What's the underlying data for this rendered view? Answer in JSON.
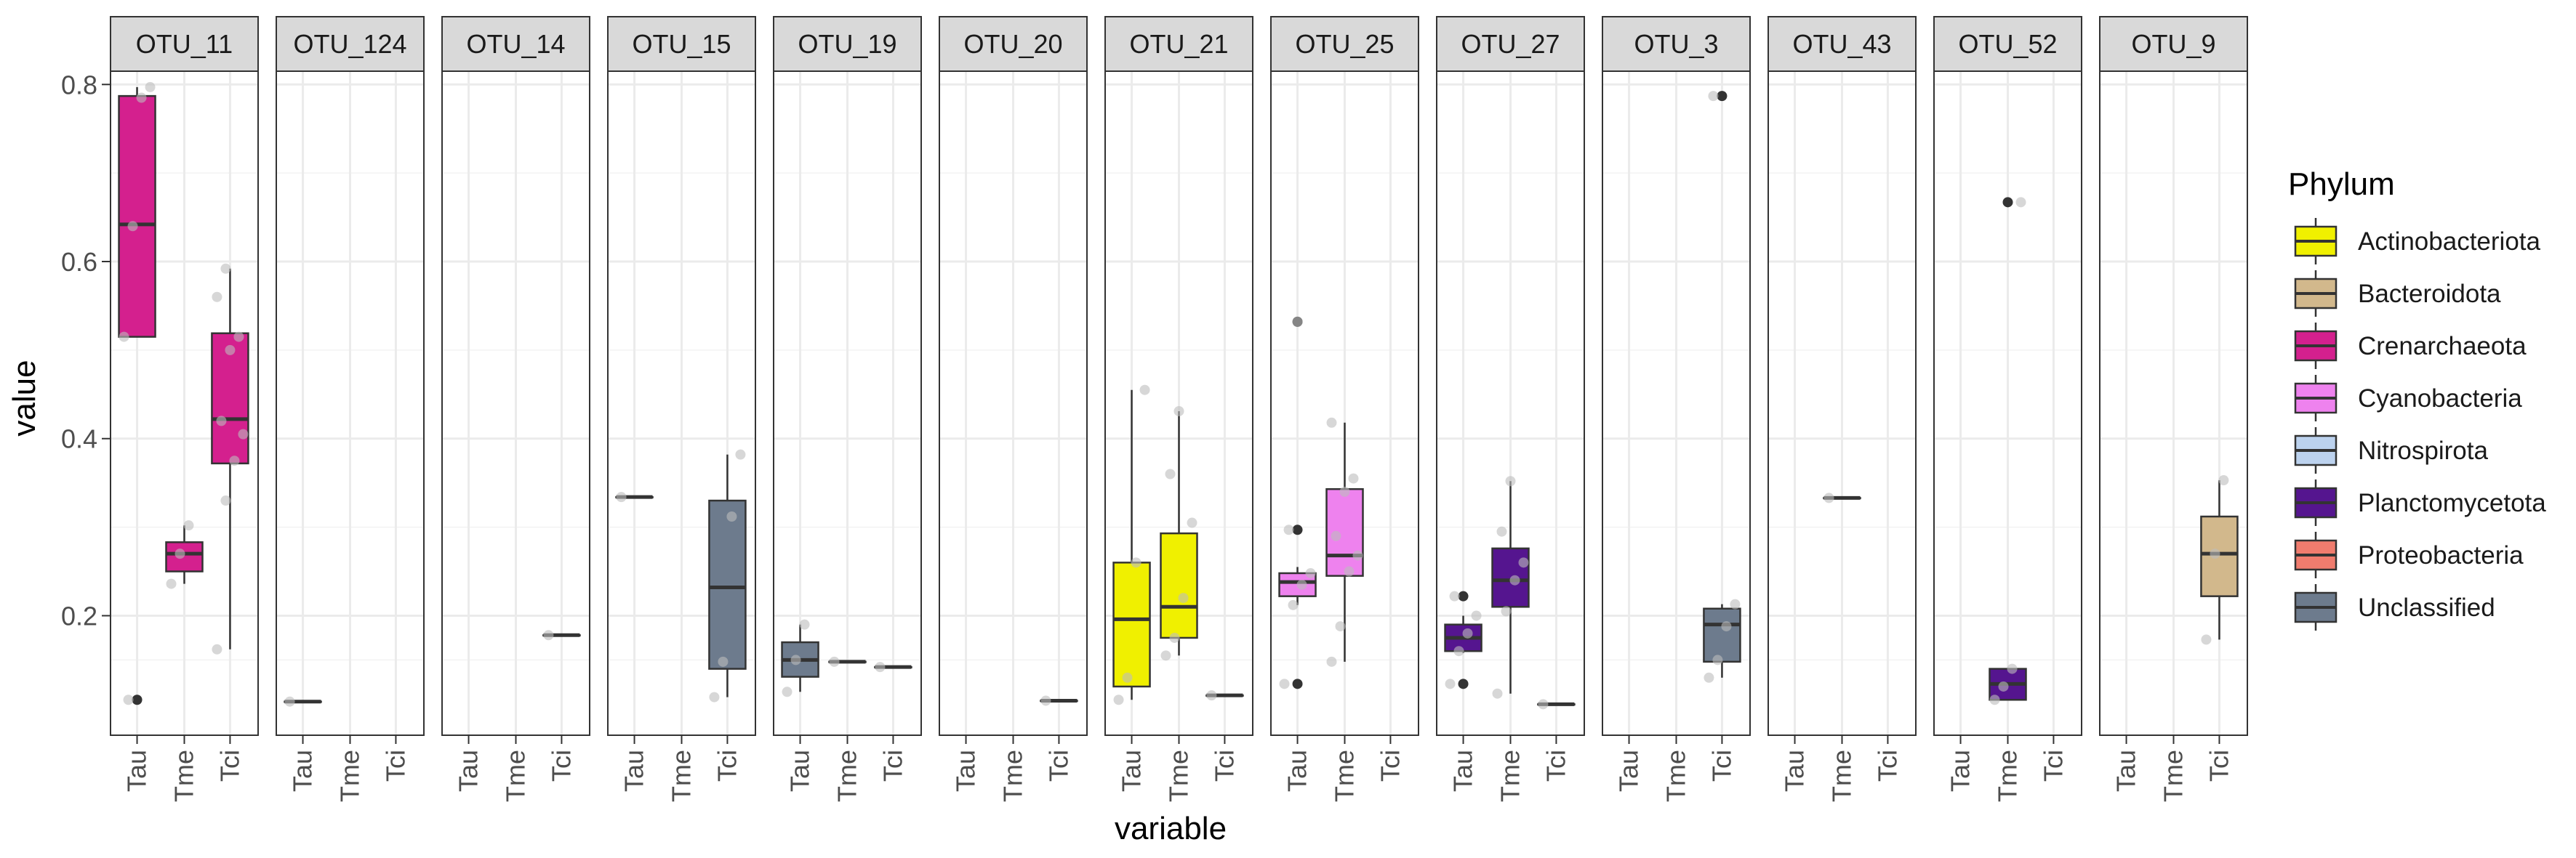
{
  "chart_data": {
    "type": "boxplot",
    "facet_by": "OTU",
    "xlabel": "variable",
    "ylabel": "value",
    "ylim": [
      0.065,
      0.815
    ],
    "y_ticks": [
      {
        "value": 0.2,
        "label": "0.2"
      },
      {
        "value": 0.4,
        "label": "0.4"
      },
      {
        "value": 0.6,
        "label": "0.6"
      },
      {
        "value": 0.8,
        "label": "0.8"
      }
    ],
    "categories": [
      "Tau",
      "Tme",
      "Tci"
    ],
    "grid": true,
    "legend": {
      "title": "Phylum",
      "position": "right",
      "items": [
        {
          "label": "Actinobacteriota",
          "color": "#f0f000"
        },
        {
          "label": "Bacteroidota",
          "color": "#d2b88c"
        },
        {
          "label": "Crenarchaeota",
          "color": "#d4208e"
        },
        {
          "label": "Cyanobacteria",
          "color": "#ee82ee"
        },
        {
          "label": "Nitrospirota",
          "color": "#bcd2ee"
        },
        {
          "label": "Planctomycetota",
          "color": "#55158f"
        },
        {
          "label": "Proteobacteria",
          "color": "#f07c6e"
        },
        {
          "label": "Unclassified",
          "color": "#6d7b8d"
        }
      ]
    },
    "panels": [
      {
        "otu": "OTU_11",
        "phylum": "Crenarchaeota",
        "groups": {
          "Tau": {
            "min": 0.515,
            "q1": 0.515,
            "median": 0.642,
            "q3": 0.787,
            "max": 0.797,
            "outliers": [
              0.105
            ],
            "points": [
              0.515,
              0.64,
              0.785,
              0.797,
              0.105
            ]
          },
          "Tme": {
            "min": 0.236,
            "q1": 0.25,
            "median": 0.27,
            "q3": 0.283,
            "max": 0.302,
            "outliers": [],
            "points": [
              0.236,
              0.27,
              0.302
            ]
          },
          "Tci": {
            "min": 0.162,
            "q1": 0.372,
            "median": 0.422,
            "q3": 0.519,
            "max": 0.592,
            "outliers": [],
            "points": [
              0.162,
              0.33,
              0.375,
              0.405,
              0.42,
              0.5,
              0.515,
              0.56,
              0.592
            ]
          }
        }
      },
      {
        "otu": "OTU_124",
        "phylum": "Unclassified",
        "groups": {
          "Tau": {
            "min": 0.103,
            "q1": 0.103,
            "median": 0.103,
            "q3": 0.103,
            "max": 0.103,
            "outliers": [],
            "points": [
              0.103
            ]
          }
        }
      },
      {
        "otu": "OTU_14",
        "phylum": "Unclassified",
        "groups": {
          "Tci": {
            "min": 0.178,
            "q1": 0.178,
            "median": 0.178,
            "q3": 0.178,
            "max": 0.178,
            "outliers": [],
            "points": [
              0.178
            ]
          }
        }
      },
      {
        "otu": "OTU_15",
        "phylum": "Unclassified",
        "groups": {
          "Tau": {
            "min": 0.334,
            "q1": 0.334,
            "median": 0.334,
            "q3": 0.334,
            "max": 0.334,
            "outliers": [],
            "points": [
              0.334
            ]
          },
          "Tci": {
            "min": 0.108,
            "q1": 0.14,
            "median": 0.232,
            "q3": 0.33,
            "max": 0.382,
            "outliers": [],
            "points": [
              0.108,
              0.148,
              0.312,
              0.382
            ]
          }
        }
      },
      {
        "otu": "OTU_19",
        "phylum": "Unclassified",
        "groups": {
          "Tau": {
            "min": 0.114,
            "q1": 0.131,
            "median": 0.15,
            "q3": 0.17,
            "max": 0.19,
            "outliers": [],
            "points": [
              0.114,
              0.15,
              0.19
            ]
          },
          "Tme": {
            "min": 0.148,
            "q1": 0.148,
            "median": 0.148,
            "q3": 0.148,
            "max": 0.148,
            "outliers": [],
            "points": [
              0.148
            ]
          },
          "Tci": {
            "min": 0.142,
            "q1": 0.142,
            "median": 0.142,
            "q3": 0.142,
            "max": 0.142,
            "outliers": [],
            "points": [
              0.142
            ]
          }
        }
      },
      {
        "otu": "OTU_20",
        "phylum": "Unclassified",
        "groups": {
          "Tci": {
            "min": 0.104,
            "q1": 0.104,
            "median": 0.104,
            "q3": 0.104,
            "max": 0.104,
            "outliers": [],
            "points": [
              0.104
            ]
          }
        }
      },
      {
        "otu": "OTU_21",
        "phylum": "Actinobacteriota",
        "groups": {
          "Tau": {
            "min": 0.105,
            "q1": 0.12,
            "median": 0.196,
            "q3": 0.26,
            "max": 0.455,
            "outliers": [],
            "points": [
              0.105,
              0.13,
              0.26,
              0.455
            ]
          },
          "Tme": {
            "min": 0.155,
            "q1": 0.175,
            "median": 0.21,
            "q3": 0.293,
            "max": 0.431,
            "outliers": [],
            "points": [
              0.155,
              0.175,
              0.22,
              0.305,
              0.36,
              0.431
            ]
          },
          "Tci": {
            "min": 0.11,
            "q1": 0.11,
            "median": 0.11,
            "q3": 0.11,
            "max": 0.11,
            "outliers": [],
            "points": [
              0.11
            ]
          }
        }
      },
      {
        "otu": "OTU_25",
        "phylum": "Cyanobacteria",
        "groups": {
          "Tau": {
            "min": 0.212,
            "q1": 0.222,
            "median": 0.238,
            "q3": 0.248,
            "max": 0.255,
            "outliers": [
              0.532,
              0.297,
              0.123
            ],
            "points": [
              0.123,
              0.212,
              0.235,
              0.248,
              0.297,
              0.532
            ]
          },
          "Tme": {
            "min": 0.148,
            "q1": 0.245,
            "median": 0.268,
            "q3": 0.343,
            "max": 0.418,
            "outliers": [],
            "points": [
              0.148,
              0.188,
              0.25,
              0.268,
              0.29,
              0.34,
              0.355,
              0.418
            ]
          }
        }
      },
      {
        "otu": "OTU_27",
        "phylum": "Planctomycetota",
        "groups": {
          "Tau": {
            "min": 0.158,
            "q1": 0.16,
            "median": 0.175,
            "q3": 0.19,
            "max": 0.2,
            "outliers": [
              0.222,
              0.123
            ],
            "points": [
              0.123,
              0.16,
              0.18,
              0.2,
              0.222
            ]
          },
          "Tme": {
            "min": 0.112,
            "q1": 0.21,
            "median": 0.24,
            "q3": 0.276,
            "max": 0.352,
            "outliers": [],
            "points": [
              0.112,
              0.205,
              0.24,
              0.26,
              0.295,
              0.352
            ]
          },
          "Tci": {
            "min": 0.1,
            "q1": 0.1,
            "median": 0.1,
            "q3": 0.1,
            "max": 0.1,
            "outliers": [],
            "points": [
              0.1
            ]
          }
        }
      },
      {
        "otu": "OTU_3",
        "phylum": "Unclassified",
        "groups": {
          "Tci": {
            "min": 0.13,
            "q1": 0.148,
            "median": 0.19,
            "q3": 0.208,
            "max": 0.213,
            "outliers": [
              0.787
            ],
            "points": [
              0.13,
              0.15,
              0.188,
              0.213,
              0.787
            ]
          }
        }
      },
      {
        "otu": "OTU_43",
        "phylum": "Unclassified",
        "groups": {
          "Tme": {
            "min": 0.333,
            "q1": 0.333,
            "median": 0.333,
            "q3": 0.333,
            "max": 0.333,
            "outliers": [],
            "points": [
              0.333
            ]
          }
        }
      },
      {
        "otu": "OTU_52",
        "phylum": "Planctomycetota",
        "groups": {
          "Tme": {
            "min": 0.105,
            "q1": 0.105,
            "median": 0.123,
            "q3": 0.14,
            "max": 0.14,
            "outliers": [
              0.667
            ],
            "points": [
              0.105,
              0.12,
              0.14,
              0.667
            ]
          }
        }
      },
      {
        "otu": "OTU_9",
        "phylum": "Bacteroidota",
        "groups": {
          "Tci": {
            "min": 0.173,
            "q1": 0.222,
            "median": 0.27,
            "q3": 0.312,
            "max": 0.353,
            "outliers": [],
            "points": [
              0.173,
              0.27,
              0.353
            ]
          }
        }
      }
    ]
  }
}
